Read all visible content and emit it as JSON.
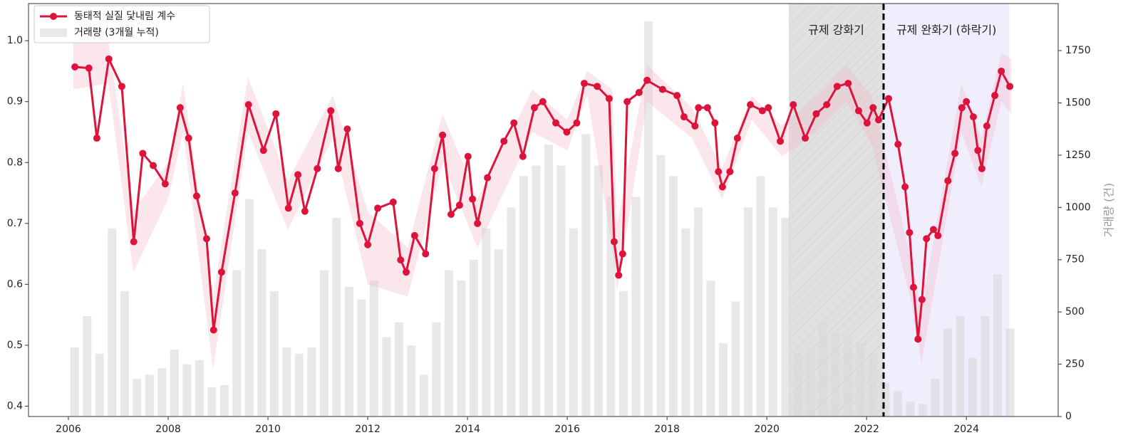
{
  "chart_data": {
    "type": "line",
    "legend": "upper left",
    "y2label": "거래량 (건)",
    "xlim": [
      2005.2,
      2025.84
    ],
    "ylim": [
      0.383,
      1.061
    ],
    "y2lim": [
      0,
      1975
    ],
    "xticks": [
      2006,
      2008,
      2010,
      2012,
      2014,
      2016,
      2018,
      2020,
      2022,
      2024
    ],
    "yticks": [
      0.4,
      0.5,
      0.6,
      0.7,
      0.8,
      0.9,
      {
        "value": 1,
        "label": "1.0"
      }
    ],
    "y2ticks": [
      0,
      250,
      500,
      750,
      1000,
      1250,
      1500,
      1750
    ],
    "regions": [
      {
        "label": "규제 강화기",
        "xlim": [
          2020.44,
          2022.34
        ],
        "color": "#d4d4d4"
      },
      {
        "label": "규제 완화기 (하락기)",
        "xlim": [
          2022.34,
          2024.86
        ],
        "color": "#e9e7fb"
      }
    ],
    "vline": 2022.34,
    "band": {
      "color": "#f4b6c8",
      "x": [
        2006.1,
        2006.8,
        2007.3,
        2008.0,
        2008.3,
        2008.9,
        2009.6,
        2010.4,
        2011.3,
        2012.0,
        2012.8,
        2013.5,
        2014.2,
        2015.3,
        2016.0,
        2016.4,
        2016.9,
        2017.0,
        2017.6,
        2018.5,
        2019.1,
        2019.7,
        2020.3,
        2021.0,
        2021.6,
        2022.1,
        2022.9,
        2023.1,
        2023.9,
        2024.3,
        2024.7,
        2024.9
      ],
      "lower": [
        0.92,
        0.93,
        0.62,
        0.74,
        0.85,
        0.46,
        0.85,
        0.69,
        0.84,
        0.6,
        0.58,
        0.8,
        0.66,
        0.85,
        0.82,
        0.91,
        0.66,
        0.59,
        0.9,
        0.84,
        0.74,
        0.87,
        0.81,
        0.85,
        0.9,
        0.83,
        0.57,
        0.47,
        0.85,
        0.76,
        0.9,
        0.88
      ],
      "upper": [
        1.0,
        1.0,
        0.72,
        0.8,
        0.93,
        0.58,
        0.94,
        0.77,
        0.91,
        0.72,
        0.66,
        0.88,
        0.74,
        0.92,
        0.87,
        0.95,
        0.92,
        0.7,
        0.96,
        0.89,
        0.79,
        0.91,
        0.86,
        0.91,
        0.96,
        0.91,
        0.64,
        0.56,
        0.93,
        0.84,
        0.98,
        0.97
      ]
    },
    "series": [
      {
        "name": "동태적 실질 닻내림 계수",
        "type": "line",
        "color": "#dc143c",
        "x": [
          2006.13,
          2006.41,
          2006.57,
          2006.81,
          2007.07,
          2007.31,
          2007.49,
          2007.7,
          2007.94,
          2008.24,
          2008.41,
          2008.57,
          2008.77,
          2008.91,
          2009.07,
          2009.34,
          2009.61,
          2009.91,
          2010.16,
          2010.41,
          2010.6,
          2010.74,
          2010.99,
          2011.26,
          2011.41,
          2011.59,
          2011.84,
          2012.0,
          2012.2,
          2012.51,
          2012.66,
          2012.77,
          2012.94,
          2013.16,
          2013.34,
          2013.5,
          2013.67,
          2013.84,
          2014.01,
          2014.1,
          2014.2,
          2014.4,
          2014.73,
          2014.93,
          2015.11,
          2015.34,
          2015.51,
          2015.77,
          2015.99,
          2016.19,
          2016.34,
          2016.6,
          2016.84,
          2016.94,
          2017.03,
          2017.11,
          2017.2,
          2017.44,
          2017.6,
          2017.91,
          2018.2,
          2018.34,
          2018.56,
          2018.63,
          2018.81,
          2018.96,
          2019.03,
          2019.11,
          2019.26,
          2019.41,
          2019.67,
          2019.91,
          2020.03,
          2020.27,
          2020.53,
          2020.77,
          2020.99,
          2021.2,
          2021.41,
          2021.63,
          2021.84,
          2022.01,
          2022.13,
          2022.24,
          2022.44,
          2022.63,
          2022.77,
          2022.86,
          2022.94,
          2023.03,
          2023.11,
          2023.2,
          2023.34,
          2023.43,
          2023.63,
          2023.77,
          2023.91,
          2024.0,
          2024.14,
          2024.23,
          2024.31,
          2024.41,
          2024.57,
          2024.7,
          2024.87
        ],
        "values": [
          0.957,
          0.955,
          0.84,
          0.97,
          0.925,
          0.67,
          0.815,
          0.795,
          0.765,
          0.89,
          0.84,
          0.745,
          0.675,
          0.525,
          0.62,
          0.75,
          0.895,
          0.82,
          0.88,
          0.725,
          0.78,
          0.72,
          0.79,
          0.885,
          0.79,
          0.855,
          0.7,
          0.665,
          0.725,
          0.735,
          0.64,
          0.62,
          0.68,
          0.65,
          0.79,
          0.845,
          0.715,
          0.73,
          0.81,
          0.74,
          0.7,
          0.775,
          0.835,
          0.865,
          0.81,
          0.89,
          0.9,
          0.865,
          0.85,
          0.865,
          0.93,
          0.925,
          0.905,
          0.67,
          0.615,
          0.65,
          0.9,
          0.915,
          0.935,
          0.92,
          0.91,
          0.875,
          0.86,
          0.89,
          0.89,
          0.865,
          0.785,
          0.76,
          0.785,
          0.84,
          0.895,
          0.885,
          0.89,
          0.835,
          0.895,
          0.84,
          0.88,
          0.895,
          0.925,
          0.93,
          0.885,
          0.865,
          0.89,
          0.87,
          0.905,
          0.83,
          0.76,
          0.685,
          0.595,
          0.51,
          0.575,
          0.675,
          0.69,
          0.68,
          0.77,
          0.815,
          0.89,
          0.9,
          0.875,
          0.82,
          0.79,
          0.86,
          0.91,
          0.95,
          0.925
        ]
      },
      {
        "name": "거래량 (3개월 누적)",
        "type": "bar",
        "axis": "y2",
        "color": "#d9d9d9",
        "x": [
          2006.125,
          2006.375,
          2006.625,
          2006.875,
          2007.125,
          2007.375,
          2007.625,
          2007.875,
          2008.125,
          2008.375,
          2008.625,
          2008.875,
          2009.125,
          2009.375,
          2009.625,
          2009.875,
          2010.125,
          2010.375,
          2010.625,
          2010.875,
          2011.125,
          2011.375,
          2011.625,
          2011.875,
          2012.125,
          2012.375,
          2012.625,
          2012.875,
          2013.125,
          2013.375,
          2013.625,
          2013.875,
          2014.125,
          2014.375,
          2014.625,
          2014.875,
          2015.125,
          2015.375,
          2015.625,
          2015.875,
          2016.125,
          2016.375,
          2016.625,
          2016.875,
          2017.125,
          2017.375,
          2017.625,
          2017.875,
          2018.125,
          2018.375,
          2018.625,
          2018.875,
          2019.125,
          2019.375,
          2019.625,
          2019.875,
          2020.125,
          2020.375,
          2020.625,
          2020.875,
          2021.125,
          2021.375,
          2021.625,
          2021.875,
          2022.125,
          2022.375,
          2022.625,
          2022.875,
          2023.125,
          2023.375,
          2023.625,
          2023.875,
          2024.125,
          2024.375,
          2024.625,
          2024.875
        ],
        "values": [
          330,
          480,
          300,
          900,
          600,
          180,
          200,
          230,
          320,
          250,
          270,
          140,
          150,
          700,
          1040,
          800,
          600,
          330,
          300,
          330,
          700,
          950,
          620,
          560,
          650,
          380,
          450,
          340,
          200,
          450,
          700,
          650,
          750,
          900,
          800,
          1000,
          1150,
          1200,
          1300,
          1200,
          900,
          1350,
          1200,
          1050,
          600,
          1050,
          1890,
          1250,
          1150,
          900,
          1000,
          650,
          350,
          550,
          1000,
          1150,
          1000,
          950,
          300,
          330,
          450,
          400,
          380,
          350,
          300,
          160,
          120,
          70,
          60,
          180,
          420,
          480,
          280,
          480,
          680,
          420
        ]
      }
    ]
  }
}
